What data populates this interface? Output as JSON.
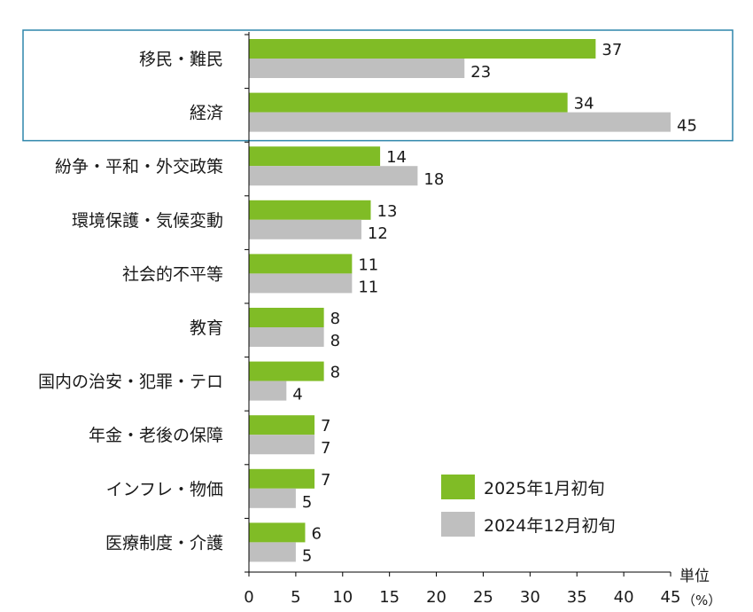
{
  "chart_data": {
    "type": "bar",
    "orientation": "horizontal",
    "categories": [
      "移民・難民",
      "経済",
      "紛争・平和・外交政策",
      "環境保護・気候変動",
      "社会的不平等",
      "教育",
      "国内の治安・犯罪・テロ",
      "年金・老後の保障",
      "インフレ・物価",
      "医療制度・介護"
    ],
    "series": [
      {
        "name": "2025年1月初旬",
        "color": "#80bc26",
        "values": [
          37,
          34,
          14,
          13,
          11,
          8,
          8,
          7,
          7,
          6
        ]
      },
      {
        "name": "2024年12月初旬",
        "color": "#bfbfbf",
        "values": [
          23,
          45,
          18,
          12,
          11,
          8,
          4,
          7,
          5,
          5
        ]
      }
    ],
    "xlim": [
      0,
      45
    ],
    "xticks": [
      0,
      5,
      10,
      15,
      20,
      25,
      30,
      35,
      40,
      45
    ],
    "unit_label": [
      "単位",
      "（%）"
    ],
    "highlight_categories": [
      "移民・難民",
      "経済"
    ],
    "highlight_color": "#2e86ab",
    "legend_position": "bottom-right"
  }
}
